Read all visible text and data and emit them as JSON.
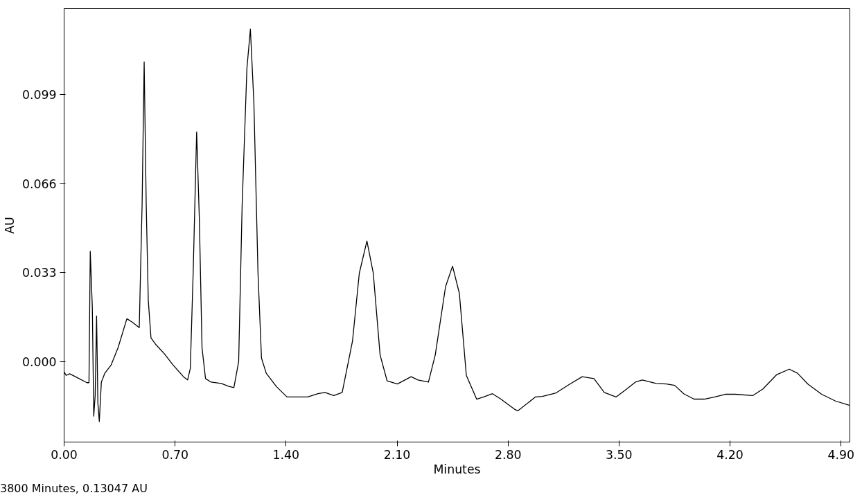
{
  "chart_data": {
    "type": "line",
    "xlabel": "Minutes",
    "ylabel": "AU",
    "xlim": [
      0,
      4.956
    ],
    "ylim": [
      -0.0298,
      0.1308
    ],
    "xticks": [
      {
        "value": 0,
        "label": "0.00"
      },
      {
        "value": 0.7,
        "label": "0.70"
      },
      {
        "value": 1.4,
        "label": "1.40"
      },
      {
        "value": 2.1,
        "label": "2.10"
      },
      {
        "value": 2.8,
        "label": "2.80"
      },
      {
        "value": 3.5,
        "label": "3.50"
      },
      {
        "value": 4.2,
        "label": "4.20"
      },
      {
        "value": 4.9,
        "label": "4.90"
      }
    ],
    "yticks": [
      {
        "value": 0,
        "label": "0.000"
      },
      {
        "value": 0.033,
        "label": "0.033"
      },
      {
        "value": 0.066,
        "label": "0.066"
      },
      {
        "value": 0.099,
        "label": "0.099"
      }
    ],
    "grid": false,
    "marker": "none",
    "line_style": "solid",
    "annotations": [
      "3800 Minutes, 0.13047 AU"
    ],
    "x": [
      0.0,
      0.013,
      0.035,
      0.078,
      0.144,
      0.157,
      0.165,
      0.178,
      0.187,
      0.196,
      0.205,
      0.213,
      0.222,
      0.235,
      0.257,
      0.296,
      0.34,
      0.396,
      0.431,
      0.474,
      0.492,
      0.505,
      0.518,
      0.531,
      0.548,
      0.579,
      0.631,
      0.688,
      0.753,
      0.779,
      0.796,
      0.814,
      0.836,
      0.853,
      0.87,
      0.892,
      0.927,
      0.992,
      1.036,
      1.071,
      1.101,
      1.123,
      1.153,
      1.175,
      1.197,
      1.223,
      1.245,
      1.275,
      1.34,
      1.406,
      1.471,
      1.536,
      1.601,
      1.645,
      1.701,
      1.754,
      1.819,
      1.862,
      1.91,
      1.95,
      1.993,
      2.037,
      2.102,
      2.189,
      2.232,
      2.298,
      2.341,
      2.406,
      2.45,
      2.493,
      2.537,
      2.602,
      2.646,
      2.702,
      2.755,
      2.842,
      2.863,
      2.972,
      3.016,
      3.103,
      3.19,
      3.268,
      3.342,
      3.407,
      3.481,
      3.538,
      3.603,
      3.647,
      3.734,
      3.799,
      3.851,
      3.908,
      3.973,
      4.038,
      4.104,
      4.169,
      4.234,
      4.343,
      4.408,
      4.495,
      4.574,
      4.626,
      4.691,
      4.778,
      4.865,
      4.952
    ],
    "series": [
      {
        "color": "#000000",
        "values": [
          -0.0038,
          -0.0051,
          -0.0045,
          -0.0058,
          -0.0078,
          -0.0078,
          0.0409,
          0.0202,
          -0.0202,
          -0.0126,
          0.0169,
          -0.0152,
          -0.0222,
          -0.0076,
          -0.0043,
          -0.0013,
          0.0051,
          0.0159,
          0.0146,
          0.0126,
          0.0581,
          0.1111,
          0.0581,
          0.0227,
          0.0088,
          0.0063,
          0.003,
          -0.0013,
          -0.0056,
          -0.0068,
          -0.0025,
          0.0328,
          0.0851,
          0.053,
          0.0051,
          -0.0063,
          -0.0076,
          -0.0081,
          -0.0091,
          -0.0096,
          0.0,
          0.0581,
          0.1086,
          0.1232,
          0.096,
          0.0328,
          0.0013,
          -0.0043,
          -0.0093,
          -0.0131,
          -0.0131,
          -0.0131,
          -0.0119,
          -0.0114,
          -0.0126,
          -0.0114,
          0.0076,
          0.0328,
          0.0447,
          0.0328,
          0.0025,
          -0.0071,
          -0.0083,
          -0.0056,
          -0.0068,
          -0.0076,
          0.0025,
          0.0278,
          0.0354,
          0.0253,
          -0.0051,
          -0.0139,
          -0.0131,
          -0.0119,
          -0.0139,
          -0.0177,
          -0.0182,
          -0.0131,
          -0.0129,
          -0.0116,
          -0.0083,
          -0.0056,
          -0.0063,
          -0.0114,
          -0.0131,
          -0.0106,
          -0.0076,
          -0.0068,
          -0.0081,
          -0.0083,
          -0.0088,
          -0.0119,
          -0.0139,
          -0.0139,
          -0.0131,
          -0.0121,
          -0.0121,
          -0.0126,
          -0.0101,
          -0.0048,
          -0.0028,
          -0.0043,
          -0.0083,
          -0.0121,
          -0.0146,
          -0.0162
        ]
      }
    ]
  }
}
